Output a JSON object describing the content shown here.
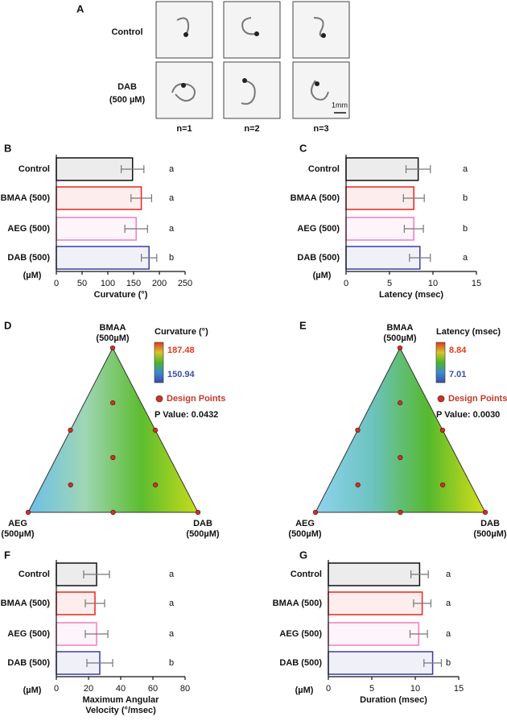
{
  "panel_a": {
    "panel_label": "A",
    "rows": [
      [
        "Control"
      ],
      [
        "DAB",
        "(500 µM)"
      ]
    ],
    "columns": [
      "n=1",
      "n=2",
      "n=3"
    ],
    "scale_label": "1mm"
  },
  "chart_data": [
    {
      "type": "bar",
      "panel_label": "B",
      "categories": [
        "Control",
        "BMAA (500)",
        "AEG (500)",
        "DAB (500)"
      ],
      "unit_label": "(µM)",
      "values": [
        148,
        165,
        155,
        180
      ],
      "errors": [
        22,
        20,
        22,
        15
      ],
      "colors": [
        "#111111",
        "#e8251f",
        "#f07cc0",
        "#3a3fa0"
      ],
      "letters": [
        "a",
        "a",
        "a",
        "b"
      ],
      "xlabel": [
        "Curvature (°)"
      ],
      "xlim": [
        0,
        250
      ],
      "xticks": [
        0,
        50,
        100,
        150,
        200,
        250
      ]
    },
    {
      "type": "bar",
      "panel_label": "C",
      "categories": [
        "Control",
        "BMAA (500)",
        "AEG (500)",
        "DAB (500)"
      ],
      "unit_label": "(µM)",
      "values": [
        8.3,
        7.8,
        7.8,
        8.5
      ],
      "errors": [
        1.4,
        1.2,
        1.1,
        1.2
      ],
      "colors": [
        "#111111",
        "#e8251f",
        "#f07cc0",
        "#3a3fa0"
      ],
      "letters": [
        "a",
        "b",
        "b",
        "a"
      ],
      "xlabel": [
        "Latency (msec)"
      ],
      "xlim": [
        0,
        15
      ],
      "xticks": [
        0,
        5,
        10,
        15
      ]
    },
    {
      "type": "ternary",
      "panel_label": "D",
      "vertex_labels": [
        [
          "BMAA",
          "(500µM)"
        ],
        [
          "AEG",
          "(500µM)"
        ],
        [
          "DAB",
          "(500µM)"
        ]
      ],
      "colorbar_label": "Curvature (°)",
      "colorbar_max": "187.48",
      "colorbar_min": "150.94",
      "colorbar_colors": [
        "#e03a1f",
        "#d9c42a",
        "#4bb52a",
        "#3b8bd2",
        "#3a4ea8"
      ],
      "fill_colors": [
        "#6cbfe8",
        "#9fd6b5",
        "#5cbd2e",
        "#c8dc1a"
      ],
      "legend": "Design Points",
      "p_value": "P Value: 0.0432",
      "point_color": "#c0392b",
      "design_points": [
        [
          1,
          0,
          0
        ],
        [
          0,
          1,
          0
        ],
        [
          0,
          0,
          1
        ],
        [
          0.5,
          0.5,
          0
        ],
        [
          0.5,
          0,
          0.5
        ],
        [
          0,
          0.5,
          0.5
        ],
        [
          0.333,
          0.333,
          0.333
        ],
        [
          0.667,
          0.167,
          0.167
        ],
        [
          0.167,
          0.667,
          0.167
        ],
        [
          0.167,
          0.167,
          0.667
        ]
      ]
    },
    {
      "type": "ternary",
      "panel_label": "E",
      "vertex_labels": [
        [
          "BMAA",
          "(500µM)"
        ],
        [
          "AEG",
          "(500µM)"
        ],
        [
          "DAB",
          "(500µM)"
        ]
      ],
      "colorbar_label": "Latency (msec)",
      "colorbar_max": "8.84",
      "colorbar_min": "7.01",
      "colorbar_colors": [
        "#e03a1f",
        "#d9c42a",
        "#4bb52a",
        "#3b8bd2",
        "#3a4ea8"
      ],
      "fill_colors": [
        "#8fd3ef",
        "#6cc3c0",
        "#56b92c",
        "#d8df1a"
      ],
      "legend": "Design Points",
      "p_value": "P Value: 0.0030",
      "point_color": "#c0392b",
      "design_points": [
        [
          1,
          0,
          0
        ],
        [
          0,
          1,
          0
        ],
        [
          0,
          0,
          1
        ],
        [
          0.5,
          0.5,
          0
        ],
        [
          0.5,
          0,
          0.5
        ],
        [
          0,
          0.5,
          0.5
        ],
        [
          0.333,
          0.333,
          0.333
        ],
        [
          0.667,
          0.167,
          0.167
        ],
        [
          0.167,
          0.667,
          0.167
        ],
        [
          0.167,
          0.167,
          0.667
        ]
      ]
    },
    {
      "type": "bar",
      "panel_label": "F",
      "categories": [
        "Control",
        "BMAA (500)",
        "AEG (500)",
        "DAB (500)"
      ],
      "unit_label": "(µM)",
      "values": [
        25,
        24,
        25,
        27
      ],
      "errors": [
        8,
        6,
        7,
        8
      ],
      "colors": [
        "#111111",
        "#e8251f",
        "#f07cc0",
        "#3a3fa0"
      ],
      "letters": [
        "a",
        "a",
        "a",
        "b"
      ],
      "xlabel": [
        "Maximum Angular",
        "Velocity (°/msec)"
      ],
      "xlim": [
        0,
        80
      ],
      "xticks": [
        0,
        20,
        40,
        60,
        80
      ]
    },
    {
      "type": "bar",
      "panel_label": "G",
      "categories": [
        "Control",
        "BMAA (500)",
        "AEG (500)",
        "DAB (500)"
      ],
      "unit_label": "(µM)",
      "values": [
        10.5,
        10.8,
        10.4,
        12
      ],
      "errors": [
        1,
        1,
        1,
        1
      ],
      "colors": [
        "#111111",
        "#e8251f",
        "#f07cc0",
        "#3a3fa0"
      ],
      "letters": [
        "a",
        "a",
        "a",
        "b"
      ],
      "xlabel": [
        "Duration (msec)"
      ],
      "xlim": [
        0,
        15
      ],
      "xticks": [
        0,
        5,
        10,
        15
      ]
    }
  ]
}
